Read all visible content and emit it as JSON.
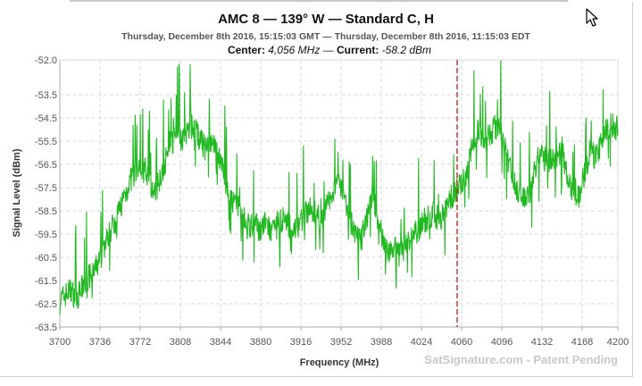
{
  "chart_data": {
    "type": "line",
    "title": "AMC 8 — 139° W — Standard C, H",
    "subtitle": "Thursday, December 8th 2016, 15:15:03 GMT — Thursday, December 8th 2016, 11:15:03 EDT",
    "subtitle2_center_label": "Center:",
    "subtitle2_center_value": " 4,056 MHz — ",
    "subtitle2_current_label": "Current:",
    "subtitle2_current_value": " -58.2 dBm",
    "xlabel": "Frequency (MHz)",
    "ylabel": "Signal Level (dBm)",
    "watermark": "SatSignature.com - Patent Pending",
    "xlim": [
      3700,
      4200
    ],
    "ylim": [
      -63.5,
      -52.0
    ],
    "x_ticks": [
      3700,
      3736,
      3772,
      3808,
      3844,
      3880,
      3916,
      3952,
      3988,
      4024,
      4060,
      4096,
      4132,
      4168,
      4200
    ],
    "y_ticks": [
      "-52.0",
      "-53.5",
      "-54.5",
      "-55.5",
      "-56.5",
      "-57.5",
      "-58.5",
      "-59.5",
      "-60.5",
      "-61.5",
      "-62.5",
      "-63.5"
    ],
    "grid": true,
    "marker_x": 4056,
    "colors": {
      "line": "#22b822",
      "marker": "#cc2222",
      "grid": "#d8d8d8",
      "axis": "#aaaaaa"
    },
    "series": [
      {
        "x": [
          3700,
          3705,
          3710,
          3715,
          3720,
          3725,
          3730,
          3735,
          3740,
          3745,
          3750,
          3755,
          3760,
          3765,
          3770,
          3775,
          3780,
          3785,
          3790,
          3795,
          3800,
          3805,
          3810,
          3815,
          3820,
          3825,
          3830,
          3835,
          3840,
          3845,
          3850,
          3855,
          3860,
          3865,
          3870,
          3875,
          3880,
          3885,
          3890,
          3895,
          3900,
          3905,
          3910,
          3915,
          3920,
          3925,
          3930,
          3935,
          3940,
          3945,
          3950,
          3955,
          3960,
          3965,
          3970,
          3975,
          3980,
          3985,
          3990,
          3995,
          4000,
          4005,
          4010,
          4015,
          4020,
          4025,
          4030,
          4035,
          4040,
          4045,
          4050,
          4055,
          4060,
          4065,
          4070,
          4075,
          4080,
          4085,
          4090,
          4095,
          4100,
          4105,
          4110,
          4115,
          4120,
          4125,
          4130,
          4135,
          4140,
          4145,
          4150,
          4155,
          4160,
          4165,
          4170,
          4175,
          4180,
          4185,
          4190,
          4195,
          4200
        ],
        "values": [
          -62.4,
          -62.1,
          -61.9,
          -62.3,
          -61.8,
          -61.4,
          -61.2,
          -60.7,
          -60.0,
          -59.4,
          -58.9,
          -58.2,
          -57.6,
          -57.0,
          -56.8,
          -56.5,
          -57.2,
          -57.8,
          -57.0,
          -56.3,
          -55.6,
          -55.2,
          -55.5,
          -55.0,
          -54.8,
          -55.4,
          -55.8,
          -55.6,
          -55.9,
          -56.4,
          -57.5,
          -58.2,
          -58.4,
          -58.8,
          -59.2,
          -59.1,
          -59.3,
          -59.0,
          -59.5,
          -59.2,
          -58.8,
          -59.1,
          -59.4,
          -59.0,
          -58.6,
          -58.4,
          -58.7,
          -58.9,
          -58.2,
          -57.6,
          -57.1,
          -57.8,
          -58.9,
          -59.6,
          -59.8,
          -58.8,
          -57.8,
          -58.9,
          -59.8,
          -60.2,
          -60.1,
          -60.4,
          -59.9,
          -59.6,
          -59.4,
          -59.0,
          -58.8,
          -58.6,
          -58.9,
          -58.5,
          -58.0,
          -57.6,
          -57.2,
          -56.8,
          -55.4,
          -55.0,
          -55.6,
          -55.2,
          -54.9,
          -55.1,
          -56.0,
          -56.9,
          -57.6,
          -57.9,
          -58.0,
          -56.7,
          -56.0,
          -56.3,
          -56.4,
          -56.2,
          -55.8,
          -57.2,
          -58.0,
          -57.8,
          -56.9,
          -55.9,
          -56.2,
          -55.6,
          -55.0,
          -54.8,
          -55.0
        ]
      }
    ]
  }
}
